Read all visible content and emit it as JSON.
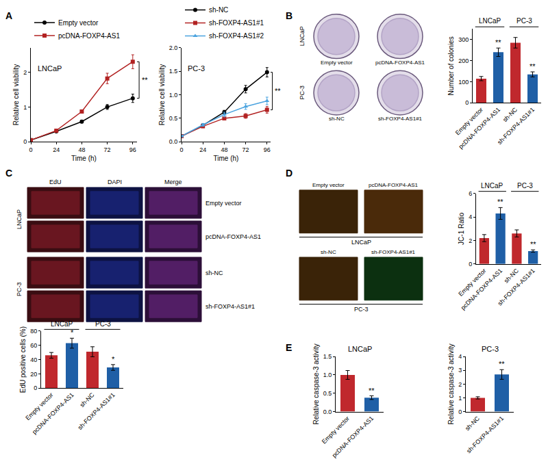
{
  "panels": [
    "A",
    "B",
    "C",
    "D",
    "E"
  ],
  "chart_data": [
    {
      "type": "line",
      "title": "LNCaP",
      "x_label": "Time (h)",
      "y_label": "Relative cell viability",
      "x": [
        0,
        24,
        48,
        72,
        96
      ],
      "xlim": [
        0,
        100
      ],
      "xticks": [
        0,
        24,
        48,
        72,
        96
      ],
      "ylim": [
        0,
        2.7
      ],
      "yticks": [
        0,
        1,
        2
      ],
      "grid": false,
      "legend": "top left",
      "series": [
        {
          "name": "Empty vector",
          "color": "#000000",
          "marker": "circle",
          "values": [
            0.05,
            0.3,
            0.58,
            1.0,
            1.25
          ],
          "errors": [
            0.02,
            0.03,
            0.04,
            0.07,
            0.12
          ]
        },
        {
          "name": "pcDNA-FOXP4-AS1",
          "color": "#b22222",
          "marker": "square",
          "values": [
            0.05,
            0.32,
            0.87,
            1.82,
            2.3
          ],
          "errors": [
            0.02,
            0.03,
            0.05,
            0.15,
            0.2
          ]
        }
      ],
      "annotations": [
        {
          "text": "**",
          "between": [
            "Empty vector",
            "pcDNA-FOXP4-AS1"
          ]
        }
      ]
    },
    {
      "type": "line",
      "title": "PC-3",
      "x_label": "Time (h)",
      "y_label": "Relative cell viability",
      "x": [
        0,
        24,
        48,
        72,
        96
      ],
      "xlim": [
        0,
        100
      ],
      "xticks": [
        0,
        24,
        48,
        72,
        96
      ],
      "ylim": [
        0,
        2.0
      ],
      "yticks": [
        {
          "value": 0,
          "label": "0.0"
        },
        0.5,
        {
          "value": 1,
          "label": "1.0"
        },
        1.5,
        {
          "value": 2,
          "label": "2.0"
        }
      ],
      "grid": false,
      "legend": "top left",
      "series": [
        {
          "name": "sh-NC",
          "color": "#000000",
          "marker": "circle",
          "values": [
            0.12,
            0.35,
            0.63,
            1.12,
            1.48
          ],
          "errors": [
            0.02,
            0.03,
            0.04,
            0.08,
            0.1
          ]
        },
        {
          "name": "sh-FOXP4-AS1#1",
          "color": "#b22222",
          "marker": "square",
          "values": [
            0.12,
            0.33,
            0.5,
            0.55,
            0.68
          ],
          "errors": [
            0.02,
            0.03,
            0.03,
            0.05,
            0.07
          ]
        },
        {
          "name": "sh-FOXP4-AS1#2",
          "color": "#4aa3df",
          "marker": "triangle-up",
          "values": [
            0.12,
            0.36,
            0.58,
            0.75,
            0.87
          ],
          "errors": [
            0.02,
            0.03,
            0.05,
            0.06,
            0.08
          ]
        }
      ],
      "annotations": [
        {
          "text": "**",
          "between": [
            "sh-NC",
            "sh-FOXP4-AS1#1"
          ]
        }
      ]
    },
    {
      "type": "bar",
      "y_label": "Number of colonies",
      "categories": [
        "Empty vector",
        "pcDNA-FOXP4-AS1",
        "sh-NC",
        "sh-FOXP4-AS1#1"
      ],
      "values": [
        115,
        240,
        285,
        135
      ],
      "errors": [
        10,
        20,
        25,
        12
      ],
      "colors": [
        "#c0282d",
        "#1f5fa6",
        "#c0282d",
        "#1f5fa6"
      ],
      "ylim": [
        0,
        350
      ],
      "yticks": [
        0,
        100,
        200,
        300
      ],
      "grid": false,
      "groups": [
        {
          "label": "LNCaP",
          "categories": [
            "Empty vector",
            "pcDNA-FOXP4-AS1"
          ]
        },
        {
          "label": "PC-3",
          "categories": [
            "sh-NC",
            "sh-FOXP4-AS1#1"
          ]
        }
      ],
      "annotations": [
        {
          "category": "pcDNA-FOXP4-AS1",
          "text": "**"
        },
        {
          "category": "sh-FOXP4-AS1#1",
          "text": "**"
        }
      ]
    },
    {
      "type": "bar",
      "y_label": "EdU positive cells (%)",
      "categories": [
        "Empty vector",
        "pcDNA-FOXP4-AS1",
        "sh-NC",
        "sh-FOXP4-AS1#1"
      ],
      "values": [
        46,
        63,
        51,
        29
      ],
      "errors": [
        4,
        7,
        7,
        4
      ],
      "colors": [
        "#c0282d",
        "#1f5fa6",
        "#c0282d",
        "#1f5fa6"
      ],
      "ylim": [
        0,
        80
      ],
      "yticks": [
        0,
        20,
        40,
        60,
        80
      ],
      "grid": false,
      "groups": [
        {
          "label": "LNCaP",
          "categories": [
            "Empty vector",
            "pcDNA-FOXP4-AS1"
          ]
        },
        {
          "label": "PC-3",
          "categories": [
            "sh-NC",
            "sh-FOXP4-AS1#1"
          ]
        }
      ],
      "annotations": [
        {
          "category": "pcDNA-FOXP4-AS1",
          "text": "*"
        },
        {
          "category": "sh-FOXP4-AS1#1",
          "text": "*"
        }
      ]
    },
    {
      "type": "bar",
      "y_label": "JC-1 Ratio",
      "categories": [
        "Empty vector",
        "pcDNA-FOXP4-AS1",
        "sh-NC",
        "sh-FOXP4-AS1#1"
      ],
      "values": [
        2.2,
        4.3,
        2.6,
        1.1
      ],
      "errors": [
        0.3,
        0.5,
        0.3,
        0.1
      ],
      "colors": [
        "#c0282d",
        "#1f5fa6",
        "#c0282d",
        "#1f5fa6"
      ],
      "ylim": [
        0,
        6
      ],
      "yticks": [
        0,
        2,
        4,
        6
      ],
      "grid": false,
      "groups": [
        {
          "label": "LNCaP",
          "categories": [
            "Empty vector",
            "pcDNA-FOXP4-AS1"
          ]
        },
        {
          "label": "PC-3",
          "categories": [
            "sh-NC",
            "sh-FOXP4-AS1#1"
          ]
        }
      ],
      "annotations": [
        {
          "category": "pcDNA-FOXP4-AS1",
          "text": "**"
        },
        {
          "category": "sh-FOXP4-AS1#1",
          "text": "**"
        }
      ]
    },
    {
      "type": "bar",
      "title": "LNCaP",
      "y_label": "Relative caspase-3 activity",
      "categories": [
        "Empty vector",
        "pcDNA-FOXP4-AS1"
      ],
      "values": [
        1.0,
        0.38
      ],
      "errors": [
        0.12,
        0.05
      ],
      "colors": [
        "#c0282d",
        "#1f5fa6"
      ],
      "ylim": [
        0,
        1.5
      ],
      "yticks": [
        {
          "value": 0,
          "label": "0.0"
        },
        0.5,
        {
          "value": 1,
          "label": "1.0"
        },
        1.5
      ],
      "grid": false,
      "annotations": [
        {
          "category": "pcDNA-FOXP4-AS1",
          "text": "**"
        }
      ]
    },
    {
      "type": "bar",
      "title": "PC-3",
      "y_label": "Relative caspase-3 activity",
      "categories": [
        "sh-NC",
        "sh-FOXP4-AS1#1"
      ],
      "values": [
        1.0,
        2.7
      ],
      "errors": [
        0.08,
        0.35
      ],
      "colors": [
        "#c0282d",
        "#1f5fa6"
      ],
      "ylim": [
        0,
        4
      ],
      "yticks": [
        0,
        1,
        2,
        3,
        4
      ],
      "grid": false,
      "annotations": [
        {
          "category": "sh-FOXP4-AS1#1",
          "text": "**"
        }
      ]
    }
  ],
  "images": {
    "B": {
      "rows": [
        "LNCaP",
        "PC-3"
      ],
      "captions": [
        [
          "Empty vector",
          "pcDNA-FOXP4-AS1"
        ],
        [
          "sh-NC",
          "sh-FOXP4-AS1#1"
        ]
      ]
    },
    "C": {
      "columns": [
        "EdU",
        "DAPI",
        "Merge"
      ],
      "groups": [
        {
          "label": "LNCaP",
          "rows": [
            "Empty vector",
            "pcDNA-FOXP4-AS1"
          ]
        },
        {
          "label": "PC-3",
          "rows": [
            "sh-NC",
            "sh-FOXP4-AS1#1"
          ]
        }
      ]
    },
    "D": {
      "groups": [
        {
          "label": "LNCaP",
          "captions": [
            "Empty vector",
            "pcDNA-FOXP4-AS1"
          ]
        },
        {
          "label": "PC-3",
          "captions": [
            "sh-NC",
            "sh-FOXP4-AS1#1"
          ]
        }
      ]
    }
  }
}
